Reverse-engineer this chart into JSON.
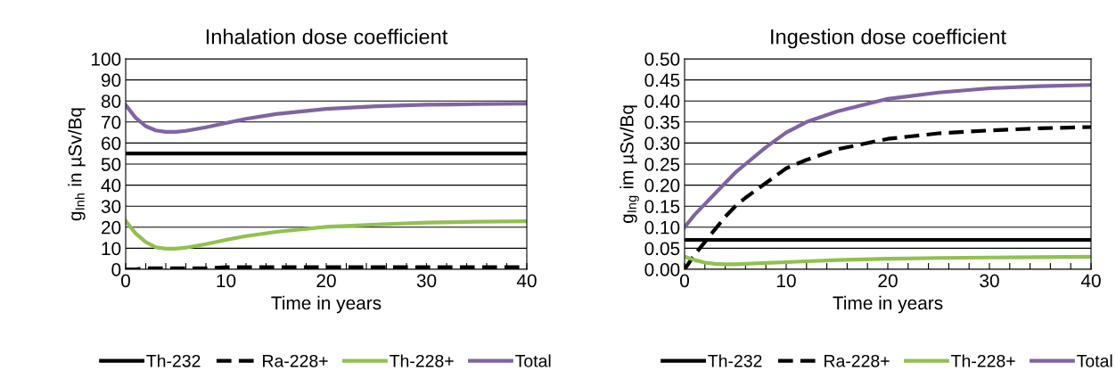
{
  "chart_data": [
    {
      "type": "line",
      "title": "Inhalation dose coefficient",
      "xlabel": "Time in years",
      "ylabel": "g$_{Inh}$ in µSv/Bq",
      "x": [
        0,
        1,
        2,
        3,
        4,
        5,
        6,
        8,
        10,
        12,
        15,
        20,
        25,
        30,
        35,
        40
      ],
      "xlim": [
        0,
        40
      ],
      "xticks": [
        0,
        {
          "value": 2,
          "label": null
        },
        {
          "value": 4,
          "label": null
        },
        {
          "value": 6,
          "label": null
        },
        {
          "value": 8,
          "label": null
        },
        10,
        {
          "value": 12,
          "label": null
        },
        {
          "value": 14,
          "label": null
        },
        {
          "value": 16,
          "label": null
        },
        {
          "value": 18,
          "label": null
        },
        20,
        {
          "value": 22,
          "label": null
        },
        {
          "value": 24,
          "label": null
        },
        {
          "value": 26,
          "label": null
        },
        {
          "value": 28,
          "label": null
        },
        30,
        {
          "value": 32,
          "label": null
        },
        {
          "value": 34,
          "label": null
        },
        {
          "value": 36,
          "label": null
        },
        {
          "value": 38,
          "label": null
        },
        40
      ],
      "ylim": [
        0,
        100
      ],
      "yticks": [
        0,
        10,
        20,
        30,
        40,
        50,
        60,
        70,
        80,
        90,
        100
      ],
      "grid": "y",
      "legend": "bottom",
      "series": [
        {
          "name": "Th-232",
          "color": "#000000",
          "line_style": "solid",
          "values": [
            55,
            55,
            55,
            55,
            55,
            55,
            55,
            55,
            55,
            55,
            55,
            55,
            55,
            55,
            55,
            55
          ]
        },
        {
          "name": "Ra-228+",
          "color": "#000000",
          "line_style": "dashed",
          "values": [
            0,
            0,
            0.5,
            0.5,
            0.5,
            0.5,
            0.5,
            0.5,
            1,
            1,
            1,
            1,
            1,
            1,
            1,
            1
          ]
        },
        {
          "name": "Th-228+",
          "color": "#92c050",
          "line_style": "solid",
          "values": [
            23,
            17,
            13,
            10.5,
            9.8,
            9.8,
            10.3,
            12,
            14,
            15.8,
            17.8,
            20.2,
            21.3,
            22.2,
            22.6,
            22.8
          ]
        },
        {
          "name": "Total",
          "color": "#8064a2",
          "line_style": "solid",
          "values": [
            78,
            72,
            68,
            66,
            65.3,
            65.3,
            65.8,
            67.5,
            69.5,
            71.5,
            73.8,
            76.2,
            77.5,
            78.2,
            78.5,
            78.7
          ]
        }
      ]
    },
    {
      "type": "line",
      "title": "Ingestion dose coefficient",
      "xlabel": "Time in years",
      "ylabel": "g$_{Ing}$ im µSv/Bq",
      "x": [
        0,
        1,
        2,
        3,
        4,
        5,
        6,
        8,
        10,
        12,
        15,
        20,
        25,
        30,
        35,
        40
      ],
      "xlim": [
        0,
        40
      ],
      "xticks": [
        0,
        {
          "value": 2,
          "label": null
        },
        {
          "value": 4,
          "label": null
        },
        {
          "value": 6,
          "label": null
        },
        {
          "value": 8,
          "label": null
        },
        10,
        {
          "value": 12,
          "label": null
        },
        {
          "value": 14,
          "label": null
        },
        {
          "value": 16,
          "label": null
        },
        {
          "value": 18,
          "label": null
        },
        20,
        {
          "value": 22,
          "label": null
        },
        {
          "value": 24,
          "label": null
        },
        {
          "value": 26,
          "label": null
        },
        {
          "value": 28,
          "label": null
        },
        30,
        {
          "value": 32,
          "label": null
        },
        {
          "value": 34,
          "label": null
        },
        {
          "value": 36,
          "label": null
        },
        {
          "value": 38,
          "label": null
        },
        40
      ],
      "ylim": [
        0,
        0.5
      ],
      "yticks": [
        {
          "value": 0,
          "label": "0.00"
        },
        {
          "value": 0.05,
          "label": "0.05"
        },
        {
          "value": 0.1,
          "label": "0.10"
        },
        {
          "value": 0.15,
          "label": "0.15"
        },
        {
          "value": 0.2,
          "label": "0.20"
        },
        {
          "value": 0.25,
          "label": "0.25"
        },
        {
          "value": 0.3,
          "label": "0.30"
        },
        {
          "value": 0.35,
          "label": "0.35"
        },
        {
          "value": 0.4,
          "label": "0.40"
        },
        {
          "value": 0.45,
          "label": "0.45"
        },
        {
          "value": 0.5,
          "label": "0.50"
        }
      ],
      "grid": "y",
      "legend": "bottom",
      "series": [
        {
          "name": "Th-232",
          "color": "#000000",
          "line_style": "solid",
          "values": [
            0.07,
            0.07,
            0.07,
            0.07,
            0.07,
            0.07,
            0.07,
            0.07,
            0.07,
            0.07,
            0.07,
            0.07,
            0.07,
            0.07,
            0.07,
            0.07
          ]
        },
        {
          "name": "Ra-228+",
          "color": "#000000",
          "line_style": "dashed",
          "values": [
            0,
            0.035,
            0.065,
            0.095,
            0.125,
            0.15,
            0.17,
            0.205,
            0.24,
            0.26,
            0.285,
            0.31,
            0.323,
            0.33,
            0.335,
            0.338
          ]
        },
        {
          "name": "Th-228+",
          "color": "#92c050",
          "line_style": "solid",
          "values": [
            0.03,
            0.022,
            0.016,
            0.013,
            0.012,
            0.012,
            0.013,
            0.015,
            0.017,
            0.019,
            0.022,
            0.025,
            0.027,
            0.028,
            0.029,
            0.03
          ]
        },
        {
          "name": "Total",
          "color": "#8064a2",
          "line_style": "solid",
          "values": [
            0.1,
            0.13,
            0.155,
            0.18,
            0.205,
            0.23,
            0.25,
            0.29,
            0.325,
            0.35,
            0.375,
            0.405,
            0.42,
            0.43,
            0.435,
            0.438
          ]
        }
      ]
    }
  ]
}
